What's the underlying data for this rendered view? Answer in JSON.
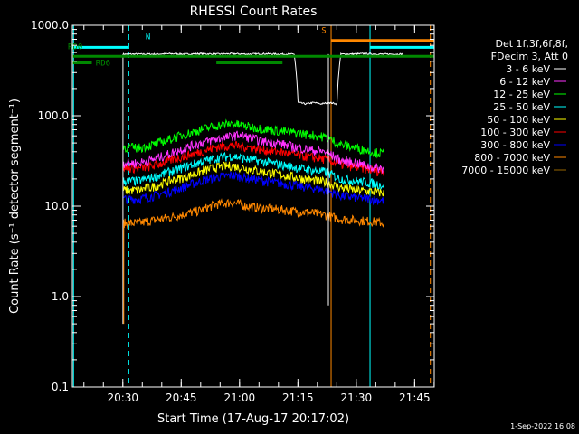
{
  "chart_data": {
    "type": "line",
    "title": "RHESSI Count Rates",
    "xlabel": "Start Time (17-Aug-17 20:17:02)",
    "ylabel": "Count Rate (s⁻¹ detector segment⁻¹)",
    "y_scale": "log",
    "ylim": [
      0.1,
      1000
    ],
    "xlim_minutes_after_2017_08_17_20_17_02": [
      0,
      93
    ],
    "x_tick_labels": [
      "20:30",
      "20:45",
      "21:00",
      "21:15",
      "21:30",
      "21:45"
    ],
    "y_tick_labels": [
      "0.1",
      "1.0",
      "10.0",
      "100.0",
      "1000.0"
    ],
    "grid": false,
    "legend_position": "right",
    "legend_header": [
      "Det 1f,3f,6f,8f,",
      "FDecim 3, Att 0"
    ],
    "series": [
      {
        "name": "3 - 6 keV",
        "color": "#ffffff",
        "points": [
          [
            13,
            480
          ],
          [
            17,
            480
          ],
          [
            21,
            480
          ],
          [
            25,
            485
          ],
          [
            29,
            480
          ],
          [
            33,
            485
          ],
          [
            37,
            480
          ],
          [
            41,
            485
          ],
          [
            45,
            480
          ],
          [
            49,
            485
          ],
          [
            53,
            480
          ],
          [
            57,
            480
          ],
          [
            58,
            140
          ],
          [
            60,
            135
          ],
          [
            62,
            140
          ],
          [
            64,
            135
          ],
          [
            66,
            140
          ],
          [
            68,
            135
          ],
          [
            69,
            480
          ],
          [
            71,
            480
          ],
          [
            75,
            485
          ],
          [
            79,
            480
          ],
          [
            83,
            480
          ],
          [
            85,
            480
          ]
        ]
      },
      {
        "name": "6 - 12 keV",
        "color": "#ff33ff",
        "points": [
          [
            13,
            30
          ],
          [
            17,
            30
          ],
          [
            21,
            33
          ],
          [
            25,
            38
          ],
          [
            29,
            44
          ],
          [
            33,
            50
          ],
          [
            37,
            55
          ],
          [
            41,
            59
          ],
          [
            43,
            62
          ],
          [
            45,
            58
          ],
          [
            49,
            52
          ],
          [
            53,
            50
          ],
          [
            57,
            45
          ],
          [
            61,
            42
          ],
          [
            65,
            40
          ],
          [
            69,
            32
          ],
          [
            73,
            30
          ],
          [
            77,
            27
          ],
          [
            80,
            26
          ]
        ]
      },
      {
        "name": "12 - 25 keV",
        "color": "#00ff00",
        "points": [
          [
            13,
            45
          ],
          [
            17,
            44
          ],
          [
            21,
            48
          ],
          [
            25,
            55
          ],
          [
            29,
            62
          ],
          [
            33,
            70
          ],
          [
            37,
            78
          ],
          [
            41,
            82
          ],
          [
            45,
            76
          ],
          [
            49,
            72
          ],
          [
            53,
            68
          ],
          [
            57,
            65
          ],
          [
            61,
            62
          ],
          [
            65,
            58
          ],
          [
            69,
            48
          ],
          [
            73,
            44
          ],
          [
            77,
            40
          ],
          [
            80,
            38
          ]
        ]
      },
      {
        "name": "25 - 50 keV",
        "color": "#00ffff",
        "points": [
          [
            13,
            19
          ],
          [
            17,
            19
          ],
          [
            21,
            21
          ],
          [
            25,
            24
          ],
          [
            29,
            27
          ],
          [
            33,
            31
          ],
          [
            37,
            34
          ],
          [
            41,
            36
          ],
          [
            45,
            33
          ],
          [
            49,
            31
          ],
          [
            53,
            29
          ],
          [
            57,
            27
          ],
          [
            61,
            25
          ],
          [
            65,
            24
          ],
          [
            69,
            20
          ],
          [
            73,
            19
          ],
          [
            77,
            18
          ],
          [
            80,
            17
          ]
        ]
      },
      {
        "name": "50 - 100 keV",
        "color": "#ffff00",
        "points": [
          [
            13,
            15
          ],
          [
            17,
            15
          ],
          [
            21,
            16.5
          ],
          [
            25,
            19
          ],
          [
            29,
            21
          ],
          [
            33,
            24
          ],
          [
            37,
            27
          ],
          [
            41,
            28
          ],
          [
            45,
            26
          ],
          [
            49,
            24
          ],
          [
            53,
            22.5
          ],
          [
            57,
            21
          ],
          [
            61,
            19.5
          ],
          [
            65,
            18.5
          ],
          [
            69,
            16
          ],
          [
            73,
            15
          ],
          [
            77,
            14.5
          ],
          [
            80,
            14
          ]
        ]
      },
      {
        "name": "100 - 300 keV",
        "color": "#ff0000",
        "points": [
          [
            13,
            27
          ],
          [
            17,
            26
          ],
          [
            21,
            28
          ],
          [
            25,
            32
          ],
          [
            29,
            36
          ],
          [
            33,
            40
          ],
          [
            37,
            45
          ],
          [
            41,
            47
          ],
          [
            45,
            45
          ],
          [
            49,
            42
          ],
          [
            53,
            40
          ],
          [
            57,
            37
          ],
          [
            61,
            35
          ],
          [
            65,
            33
          ],
          [
            69,
            29
          ],
          [
            73,
            27
          ],
          [
            77,
            25
          ],
          [
            80,
            24
          ]
        ]
      },
      {
        "name": "300 - 800 keV",
        "color": "#0000ff",
        "points": [
          [
            13,
            12
          ],
          [
            17,
            12
          ],
          [
            21,
            13
          ],
          [
            25,
            14.5
          ],
          [
            29,
            16.5
          ],
          [
            33,
            19
          ],
          [
            37,
            21
          ],
          [
            41,
            22
          ],
          [
            45,
            20.5
          ],
          [
            49,
            19
          ],
          [
            53,
            18
          ],
          [
            57,
            17
          ],
          [
            61,
            16
          ],
          [
            65,
            15
          ],
          [
            69,
            13
          ],
          [
            73,
            12.5
          ],
          [
            77,
            12
          ],
          [
            80,
            11.5
          ]
        ]
      },
      {
        "name": "800 - 7000 keV",
        "color": "#ff8800",
        "points": [
          [
            13,
            6.5
          ],
          [
            17,
            6.5
          ],
          [
            21,
            7
          ],
          [
            25,
            7.5
          ],
          [
            29,
            8.2
          ],
          [
            33,
            9
          ],
          [
            37,
            10.5
          ],
          [
            41,
            11
          ],
          [
            45,
            10
          ],
          [
            49,
            9.5
          ],
          [
            53,
            9.2
          ],
          [
            57,
            8.8
          ],
          [
            61,
            8.5
          ],
          [
            65,
            8
          ],
          [
            69,
            7.2
          ],
          [
            73,
            7
          ],
          [
            77,
            6.8
          ],
          [
            80,
            6.5
          ]
        ]
      },
      {
        "name": "7000 - 15000 keV",
        "color": "#996600",
        "points": []
      }
    ],
    "annotations": [
      {
        "label": "RD0",
        "color": "#008800"
      },
      {
        "label": "RD6",
        "color": "#008800"
      },
      {
        "label": "N",
        "color": "#00ffff"
      },
      {
        "label": "S",
        "color": "#ff8800"
      }
    ]
  },
  "footer_timestamp": "1-Sep-2022 16:08"
}
